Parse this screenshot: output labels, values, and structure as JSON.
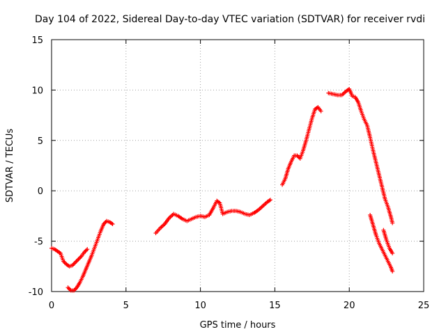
{
  "chart_data": {
    "type": "scatter",
    "title": "Day 104 of 2022, Sidereal Day-to-day VTEC variation (SDTVAR) for receiver rvdi",
    "xlabel": "GPS time / hours",
    "ylabel": "SDTVAR / TECUs",
    "xlim": [
      0,
      25
    ],
    "ylim": [
      -10,
      15
    ],
    "xticks": [
      0,
      5,
      10,
      15,
      20,
      25
    ],
    "yticks": [
      -10,
      -5,
      0,
      5,
      10,
      15
    ],
    "grid": true,
    "marker": "plus",
    "color": "#ff0000",
    "series": [
      {
        "x": [
          0.0,
          0.2,
          0.4,
          0.6,
          0.8,
          1.0,
          1.2,
          1.4,
          1.6,
          1.8,
          2.0,
          2.2,
          2.4
        ],
        "y": [
          -5.7,
          -5.8,
          -6.0,
          -6.2,
          -7.0,
          -7.3,
          -7.5,
          -7.4,
          -7.1,
          -6.8,
          -6.5,
          -6.1,
          -5.8
        ]
      },
      {
        "x": [
          1.1,
          1.3,
          1.5,
          1.7,
          1.9,
          2.1,
          2.3,
          2.5,
          2.7,
          2.9,
          3.1,
          3.3,
          3.5,
          3.7,
          3.9,
          4.1
        ],
        "y": [
          -9.6,
          -9.9,
          -9.9,
          -9.6,
          -9.1,
          -8.5,
          -7.8,
          -7.1,
          -6.4,
          -5.6,
          -4.8,
          -4.0,
          -3.3,
          -3.0,
          -3.1,
          -3.3
        ]
      },
      {
        "x": [
          7.0,
          7.3,
          7.6,
          7.9,
          8.2,
          8.5,
          8.8,
          9.1,
          9.4,
          9.7,
          10.0,
          10.3,
          10.6,
          10.9,
          11.1,
          11.3,
          11.5,
          11.8,
          12.1,
          12.4,
          12.7,
          13.0,
          13.3,
          13.6,
          13.9,
          14.2,
          14.5,
          14.7
        ],
        "y": [
          -4.2,
          -3.7,
          -3.3,
          -2.7,
          -2.3,
          -2.5,
          -2.8,
          -3.0,
          -2.8,
          -2.6,
          -2.5,
          -2.6,
          -2.4,
          -1.6,
          -1.0,
          -1.2,
          -2.3,
          -2.1,
          -2.0,
          -2.0,
          -2.1,
          -2.3,
          -2.4,
          -2.2,
          -1.9,
          -1.5,
          -1.1,
          -0.9
        ]
      },
      {
        "x": [
          15.5,
          15.7,
          15.9,
          16.1,
          16.3,
          16.5,
          16.7,
          16.9,
          17.1,
          17.3,
          17.5,
          17.7,
          17.9,
          18.1
        ],
        "y": [
          0.6,
          1.2,
          2.2,
          2.9,
          3.5,
          3.5,
          3.2,
          4.0,
          5.0,
          6.1,
          7.2,
          8.1,
          8.3,
          7.9
        ]
      },
      {
        "x": [
          18.6,
          18.9,
          19.2,
          19.5,
          19.8,
          20.0,
          20.2,
          20.4,
          20.6,
          20.8,
          21.0,
          21.2,
          21.4,
          21.6,
          21.8,
          22.0,
          22.2,
          22.4,
          22.6,
          22.8,
          22.9
        ],
        "y": [
          9.7,
          9.6,
          9.5,
          9.5,
          9.9,
          10.1,
          9.4,
          9.3,
          8.8,
          7.9,
          7.1,
          6.5,
          5.3,
          4.0,
          2.8,
          1.6,
          0.4,
          -0.8,
          -1.6,
          -2.6,
          -3.2
        ]
      },
      {
        "x": [
          21.4,
          21.6,
          21.8,
          22.0,
          22.2,
          22.4,
          22.6,
          22.8,
          22.9
        ],
        "y": [
          -2.4,
          -3.4,
          -4.4,
          -5.2,
          -5.8,
          -6.4,
          -7.0,
          -7.6,
          -8.0
        ]
      },
      {
        "x": [
          22.3,
          22.5,
          22.7,
          22.9
        ],
        "y": [
          -3.9,
          -4.9,
          -5.7,
          -6.2
        ]
      }
    ]
  }
}
